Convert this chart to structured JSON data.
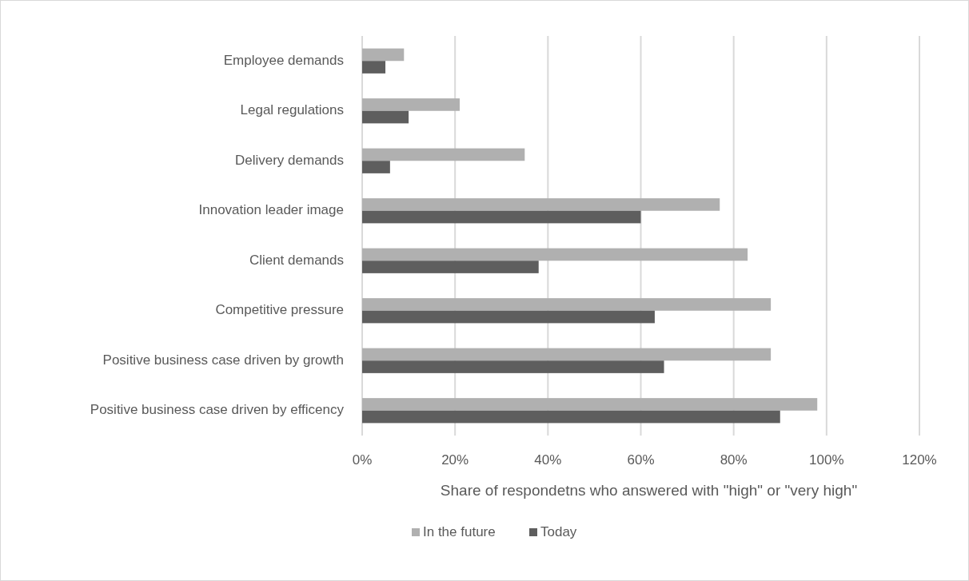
{
  "chart_data": {
    "type": "bar",
    "orientation": "horizontal",
    "xlabel": "Share of respondetns who answered with \"high\" or \"very high\"",
    "categories": [
      "Employee demands",
      "Legal regulations",
      "Delivery demands",
      "Innovation leader image",
      "Client demands",
      "Competitive pressure",
      "Positive business case driven by growth",
      "Positive business case driven by efficency"
    ],
    "series": [
      {
        "name": "In the future",
        "color": "#b0b0b0",
        "values": [
          9,
          21,
          35,
          77,
          83,
          88,
          88,
          98
        ]
      },
      {
        "name": "Today",
        "color": "#5e5e5e",
        "values": [
          5,
          10,
          6,
          60,
          38,
          63,
          65,
          90
        ]
      }
    ],
    "xlim": [
      0,
      120
    ],
    "xticks": [
      {
        "value": 0,
        "label": "0%"
      },
      {
        "value": 20,
        "label": "20%"
      },
      {
        "value": 40,
        "label": "40%"
      },
      {
        "value": 60,
        "label": "60%"
      },
      {
        "value": 80,
        "label": "80%"
      },
      {
        "value": 100,
        "label": "100%"
      },
      {
        "value": 120,
        "label": "120%"
      }
    ],
    "grid": "x",
    "legend": "bottom"
  }
}
